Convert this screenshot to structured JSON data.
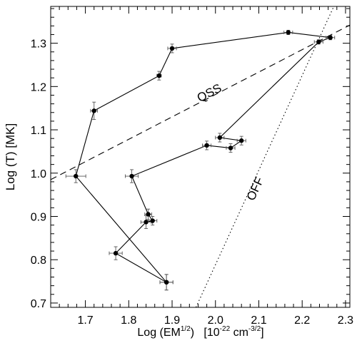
{
  "chart_data": {
    "type": "line",
    "xlabel": {
      "main": "Log (EM",
      "sup1": "1/2",
      "mid": ")   [10",
      "sup2": "-22",
      "mid2": " cm",
      "sup3": "-3/2",
      "end": "]"
    },
    "ylabel": "Log (T) [MK]",
    "xlim": [
      1.62,
      2.31
    ],
    "ylim": [
      0.69,
      1.385
    ],
    "xticks": [
      1.7,
      1.8,
      1.9,
      2.0,
      2.1,
      2.2,
      2.3
    ],
    "xtick_labels": [
      "1.7",
      "1.8",
      "1.9",
      "2.0",
      "2.1",
      "2.2",
      "2.3"
    ],
    "yticks": [
      0.7,
      0.8,
      0.9,
      1.0,
      1.1,
      1.2,
      1.3
    ],
    "ytick_labels": [
      "0.7",
      "0.8",
      "0.9",
      "1.0",
      "1.1",
      "1.2",
      "1.3"
    ],
    "series": [
      {
        "values": [
          {
            "x": 1.887,
            "y": 0.748,
            "xerr": 0.015,
            "yerr": 0.018
          },
          {
            "x": 1.77,
            "y": 0.815,
            "xerr": 0.015,
            "yerr": 0.015
          },
          {
            "x": 1.84,
            "y": 0.887,
            "xerr": 0.012,
            "yerr": 0.015
          },
          {
            "x": 1.855,
            "y": 0.89,
            "xerr": 0.01,
            "yerr": 0.01
          },
          {
            "x": 1.845,
            "y": 0.905,
            "xerr": 0.008,
            "yerr": 0.012
          },
          {
            "x": 1.807,
            "y": 0.993,
            "xerr": 0.015,
            "yerr": 0.015
          },
          {
            "x": 1.98,
            "y": 1.064,
            "xerr": 0.01,
            "yerr": 0.01
          },
          {
            "x": 2.035,
            "y": 1.058,
            "xerr": 0.01,
            "yerr": 0.01
          },
          {
            "x": 2.06,
            "y": 1.075,
            "xerr": 0.01,
            "yerr": 0.01
          },
          {
            "x": 2.01,
            "y": 1.082,
            "xerr": 0.01,
            "yerr": 0.01
          },
          {
            "x": 2.238,
            "y": 1.303,
            "xerr": 0.01,
            "yerr": 0.005
          },
          {
            "x": 2.265,
            "y": 1.313,
            "xerr": 0.01,
            "yerr": 0.005
          },
          {
            "x": 2.168,
            "y": 1.325,
            "xerr": 0.01,
            "yerr": 0.005
          },
          {
            "x": 1.9,
            "y": 1.288,
            "xerr": 0.01,
            "yerr": 0.01
          },
          {
            "x": 1.87,
            "y": 1.225,
            "xerr": 0.005,
            "yerr": 0.01
          },
          {
            "x": 1.72,
            "y": 1.144,
            "xerr": 0.008,
            "yerr": 0.02
          },
          {
            "x": 1.678,
            "y": 0.993,
            "xerr": 0.023,
            "yerr": 0.015
          },
          {
            "x": 1.887,
            "y": 0.748,
            "xerr": 0.015,
            "yerr": 0.018
          }
        ]
      }
    ],
    "reference_lines": [
      {
        "label": "QSS",
        "style": "dashed",
        "points": [
          [
            1.62,
            0.985
          ],
          [
            2.31,
            1.342
          ]
        ],
        "label_at": [
          1.99,
          1.177
        ]
      },
      {
        "label": "OFF",
        "style": "dotted",
        "points": [
          [
            1.955,
            0.69
          ],
          [
            2.273,
            1.385
          ]
        ],
        "label_at": [
          2.1,
          0.96
        ]
      }
    ]
  }
}
